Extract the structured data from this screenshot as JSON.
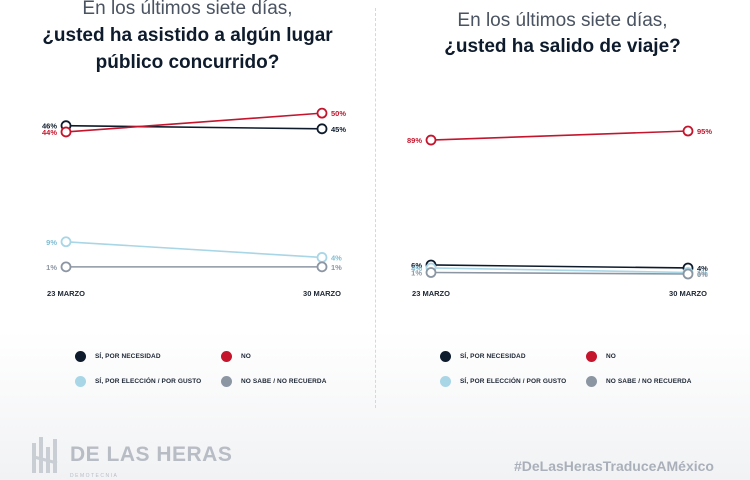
{
  "colors": {
    "navy": "#0e1b2c",
    "red": "#c4152d",
    "light_blue": "#a8d6e6",
    "gray": "#8c96a3"
  },
  "panels": [
    {
      "title_line1": "En los últimos siete días,",
      "title_line2": "¿usted ha asistido a algún lugar",
      "title_line3": "público concurrido?",
      "legend": {
        "si_necesidad": "SÍ, POR NECESIDAD",
        "no": "NO",
        "si_eleccion": "SÍ, POR ELECCIÓN / POR GUSTO",
        "no_sabe": "NO SABE / NO RECUERDA"
      }
    },
    {
      "title_line1": "En los últimos siete días,",
      "title_line2": "¿usted ha salido de viaje?",
      "title_line3": "",
      "legend": {
        "si_necesidad": "SÍ, POR NECESIDAD",
        "no": "NO",
        "si_eleccion": "SÍ, POR ELECCIÓN / POR GUSTO",
        "no_sabe": "NO SABE / NO RECUERDA"
      }
    }
  ],
  "chart_data": [
    {
      "type": "line",
      "title": "¿usted ha asistido a algún lugar público concurrido?",
      "x": [
        "23 MARZO",
        "30 MARZO"
      ],
      "series": [
        {
          "name": "SÍ, POR NECESIDAD",
          "color": "#0e1b2c",
          "values": [
            46,
            45
          ],
          "labels": [
            "46%",
            "45%"
          ]
        },
        {
          "name": "NO",
          "color": "#c4152d",
          "values": [
            44,
            50
          ],
          "labels": [
            "44%",
            "50%"
          ]
        },
        {
          "name": "SÍ, POR ELECCIÓN / POR GUSTO",
          "color": "#a8d6e6",
          "values": [
            9,
            4
          ],
          "labels": [
            "9%",
            "4%"
          ]
        },
        {
          "name": "NO SABE / NO RECUERDA",
          "color": "#8c96a3",
          "values": [
            1,
            1
          ],
          "labels": [
            "1%",
            "1%"
          ]
        }
      ]
    },
    {
      "type": "line",
      "title": "¿usted ha salido de viaje?",
      "x": [
        "23 MARZO",
        "30 MARZO"
      ],
      "series": [
        {
          "name": "SÍ, POR NECESIDAD",
          "color": "#0e1b2c",
          "values": [
            6,
            4
          ],
          "labels": [
            "6%",
            "4%"
          ]
        },
        {
          "name": "NO",
          "color": "#c4152d",
          "values": [
            89,
            95
          ],
          "labels": [
            "89%",
            "95%"
          ]
        },
        {
          "name": "SÍ, POR ELECCIÓN / POR GUSTO",
          "color": "#a8d6e6",
          "values": [
            4,
            1
          ],
          "labels": [
            "4%",
            "1%"
          ]
        },
        {
          "name": "NO SABE / NO RECUERDA",
          "color": "#8c96a3",
          "values": [
            1,
            0
          ],
          "labels": [
            "1%",
            "0%"
          ]
        }
      ]
    }
  ],
  "footer": {
    "logo_name": "DE LAS HERAS",
    "logo_sub": "DEMOTECNIA",
    "hashtag": "#DeLasHerasTraduceAMéxico"
  }
}
